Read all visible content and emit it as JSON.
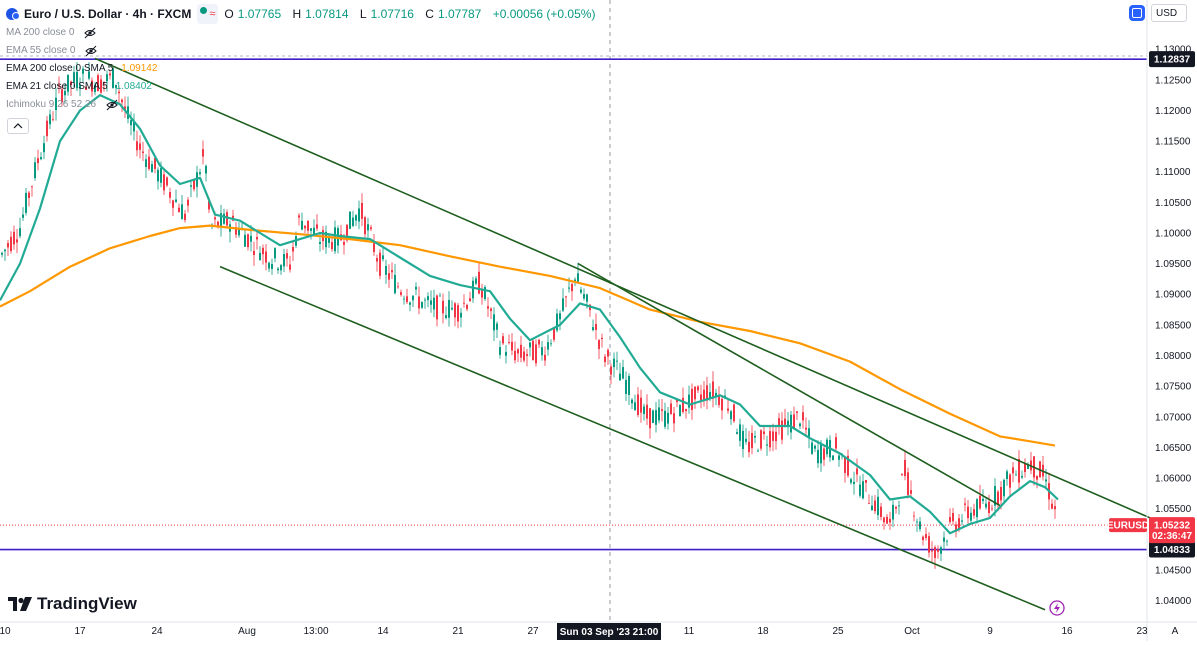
{
  "symbol": {
    "title": "Euro / U.S. Dollar · 4h · FXCM",
    "ohlc": [
      {
        "k": "O",
        "v": "1.07765"
      },
      {
        "k": "H",
        "v": "1.07814"
      },
      {
        "k": "L",
        "v": "1.07716"
      },
      {
        "k": "C",
        "v": "1.07787"
      }
    ],
    "change": "+0.00056 (+0.05%)",
    "wave_glyph": "≈"
  },
  "indicators": [
    {
      "label": "MA 200 close 0",
      "value": "",
      "color": "#8a8e99",
      "hidden": true
    },
    {
      "label": "EMA 55 close 0",
      "value": "",
      "color": "#8a8e99",
      "hidden": true
    },
    {
      "label": "EMA 200 close 0 SMA 5",
      "value": "1.09142",
      "color": "#ff9800",
      "hidden": false
    },
    {
      "label": "EMA 21 close 0 SMA 5",
      "value": "1.08402",
      "color": "#22ab94",
      "hidden": false
    },
    {
      "label": "Ichimoku 9 26 52 26",
      "value": "",
      "color": "#8a8e99",
      "hidden": true
    }
  ],
  "currency_button": "USD",
  "brand": "TradingView",
  "price_tags": {
    "symbol_label": "EURUSD",
    "last": "1.05232",
    "countdown": "02:36:47",
    "resistance": "1.12837",
    "support": "1.04833"
  },
  "crosshair_label": "Sun 03 Sep '23   21:00",
  "auto_label": "A",
  "chart_data": {
    "type": "candlestick",
    "x": [
      "10",
      "17",
      "24",
      "Aug",
      "13:00",
      "14",
      "21",
      "27",
      "Sun 03 Sep '23",
      "11",
      "18",
      "25",
      "Oct",
      "9",
      "16",
      "23"
    ],
    "yticks": [
      "1.13000",
      "1.12500",
      "1.12000",
      "1.11500",
      "1.11000",
      "1.10500",
      "1.10000",
      "1.09500",
      "1.09000",
      "1.08500",
      "1.08000",
      "1.07500",
      "1.07000",
      "1.06500",
      "1.06000",
      "1.05500",
      "1.05000",
      "1.04500",
      "1.04000"
    ],
    "ylim": [
      1.0365,
      1.1315
    ],
    "horizontal_levels": [
      1.12837,
      1.04833
    ],
    "last_price": 1.05232,
    "ema200": [
      [
        0,
        1.088
      ],
      [
        30,
        1.0905
      ],
      [
        70,
        1.0945
      ],
      [
        110,
        1.0975
      ],
      [
        150,
        1.0995
      ],
      [
        180,
        1.1008
      ],
      [
        210,
        1.1012
      ],
      [
        250,
        1.1005
      ],
      [
        300,
        1.0998
      ],
      [
        350,
        1.099
      ],
      [
        400,
        1.098
      ],
      [
        450,
        1.0962
      ],
      [
        500,
        1.0945
      ],
      [
        550,
        1.093
      ],
      [
        600,
        1.091
      ],
      [
        650,
        1.0875
      ],
      [
        700,
        1.0855
      ],
      [
        750,
        1.084
      ],
      [
        800,
        1.082
      ],
      [
        850,
        1.079
      ],
      [
        900,
        1.0745
      ],
      [
        950,
        1.0705
      ],
      [
        1000,
        1.0668
      ],
      [
        1030,
        1.066
      ],
      [
        1055,
        1.0653
      ]
    ],
    "ema21": [
      [
        0,
        1.089
      ],
      [
        20,
        1.095
      ],
      [
        40,
        1.104
      ],
      [
        60,
        1.115
      ],
      [
        80,
        1.12
      ],
      [
        100,
        1.1225
      ],
      [
        120,
        1.121
      ],
      [
        140,
        1.117
      ],
      [
        160,
        1.111
      ],
      [
        180,
        1.108
      ],
      [
        200,
        1.109
      ],
      [
        215,
        1.103
      ],
      [
        240,
        1.102
      ],
      [
        260,
        1.1
      ],
      [
        280,
        1.098
      ],
      [
        300,
        1.099
      ],
      [
        320,
        1.1
      ],
      [
        340,
        1.0995
      ],
      [
        370,
        1.099
      ],
      [
        400,
        1.096
      ],
      [
        430,
        1.093
      ],
      [
        460,
        1.0915
      ],
      [
        490,
        1.0905
      ],
      [
        510,
        1.086
      ],
      [
        530,
        1.0825
      ],
      [
        560,
        1.085
      ],
      [
        580,
        1.0885
      ],
      [
        600,
        1.0875
      ],
      [
        620,
        1.083
      ],
      [
        640,
        1.078
      ],
      [
        660,
        1.074
      ],
      [
        690,
        1.072
      ],
      [
        720,
        1.0735
      ],
      [
        740,
        1.072
      ],
      [
        760,
        1.0685
      ],
      [
        790,
        1.0685
      ],
      [
        810,
        1.0665
      ],
      [
        840,
        1.064
      ],
      [
        870,
        1.0605
      ],
      [
        890,
        1.0565
      ],
      [
        910,
        1.057
      ],
      [
        930,
        1.0545
      ],
      [
        950,
        1.051
      ],
      [
        970,
        1.0525
      ],
      [
        990,
        1.0535
      ],
      [
        1010,
        1.057
      ],
      [
        1030,
        1.0595
      ],
      [
        1045,
        1.0585
      ],
      [
        1058,
        1.0565
      ]
    ],
    "trendlines": [
      {
        "from": [
          95,
          1.1285
        ],
        "to": [
          1150,
          1.0535
        ]
      },
      {
        "from": [
          220,
          1.0945
        ],
        "to": [
          1045,
          1.0385
        ]
      },
      {
        "from": [
          578,
          1.095
        ],
        "to": [
          1000,
          1.0555
        ]
      }
    ]
  }
}
